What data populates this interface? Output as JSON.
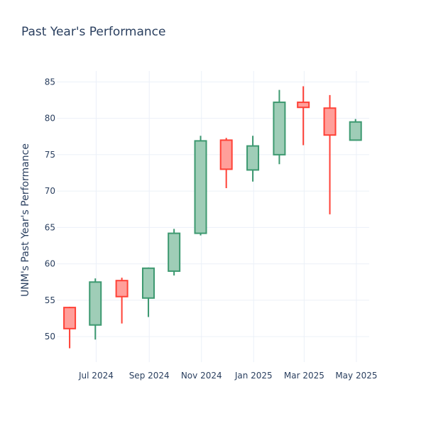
{
  "chart_data": {
    "type": "candlestick",
    "title": "Past Year's Performance",
    "xlabel": "",
    "ylabel": "UNM's Past Year's Performance",
    "ylim": [
      46.5,
      86.5
    ],
    "y_ticks": [
      50,
      55,
      60,
      65,
      70,
      75,
      80,
      85
    ],
    "x_ticks": [
      {
        "date": "2024-07-01",
        "label": "Jul 2024"
      },
      {
        "date": "2024-09-01",
        "label": "Sep 2024"
      },
      {
        "date": "2024-11-01",
        "label": "Nov 2024"
      },
      {
        "date": "2025-01-01",
        "label": "Jan 2025"
      },
      {
        "date": "2025-03-01",
        "label": "Mar 2025"
      },
      {
        "date": "2025-05-01",
        "label": "May 2025"
      }
    ],
    "xlim": [
      "2024-05-16",
      "2025-05-16"
    ],
    "grid": true,
    "colors": {
      "increasing_line": "#3d9970",
      "increasing_fill": "#9fcdb7",
      "decreasing_line": "#ff4136",
      "decreasing_fill": "#ff9f9a"
    },
    "candles": [
      {
        "date": "2024-05-31",
        "open": 54.0,
        "high": 54.1,
        "low": 48.4,
        "close": 51.1
      },
      {
        "date": "2024-06-30",
        "open": 51.6,
        "high": 58.0,
        "low": 49.6,
        "close": 57.5
      },
      {
        "date": "2024-07-31",
        "open": 57.7,
        "high": 58.1,
        "low": 51.8,
        "close": 55.5
      },
      {
        "date": "2024-08-31",
        "open": 55.3,
        "high": 59.5,
        "low": 52.7,
        "close": 59.4
      },
      {
        "date": "2024-09-30",
        "open": 59.0,
        "high": 64.8,
        "low": 58.4,
        "close": 64.2
      },
      {
        "date": "2024-10-31",
        "open": 64.2,
        "high": 77.6,
        "low": 63.9,
        "close": 76.9
      },
      {
        "date": "2024-11-30",
        "open": 77.0,
        "high": 77.3,
        "low": 70.4,
        "close": 73.0
      },
      {
        "date": "2024-12-31",
        "open": 72.9,
        "high": 77.6,
        "low": 71.3,
        "close": 76.2
      },
      {
        "date": "2025-01-31",
        "open": 75.0,
        "high": 83.9,
        "low": 73.7,
        "close": 82.2
      },
      {
        "date": "2025-02-28",
        "open": 82.2,
        "high": 84.4,
        "low": 76.3,
        "close": 81.5
      },
      {
        "date": "2025-03-31",
        "open": 81.4,
        "high": 83.2,
        "low": 66.8,
        "close": 77.7
      },
      {
        "date": "2025-04-30",
        "open": 77.0,
        "high": 79.9,
        "low": 77.0,
        "close": 79.5
      }
    ]
  }
}
